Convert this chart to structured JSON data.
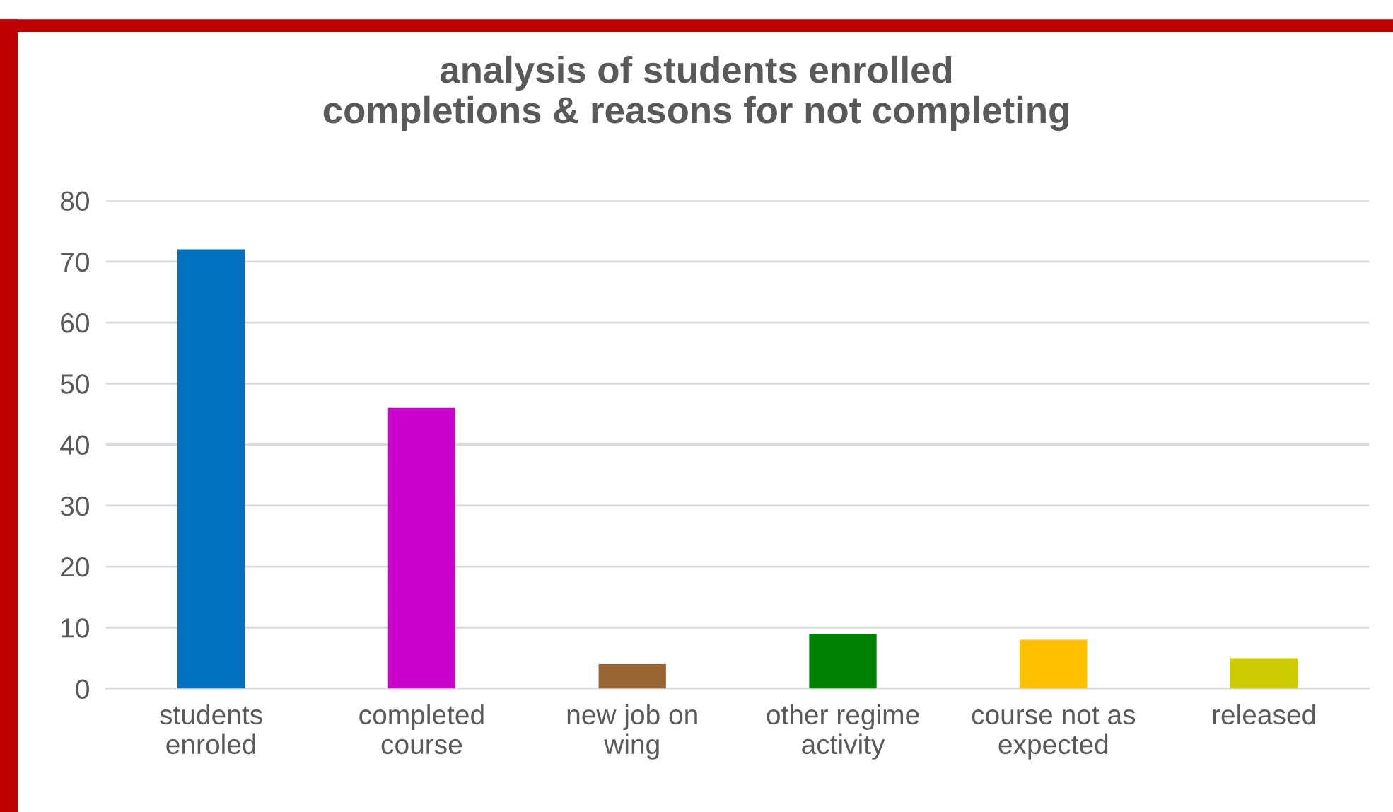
{
  "chart_data": {
    "type": "bar",
    "title": "analysis of students enrolled\ncompletions & reasons for not completing",
    "categories": [
      "students\nenroled",
      "completed\ncourse",
      "new job on\nwing",
      "other regime\nactivity",
      "course not as\nexpected",
      "released"
    ],
    "values": [
      72,
      46,
      4,
      9,
      8,
      5
    ],
    "colors": [
      "#0070c0",
      "#cc00cc",
      "#996633",
      "#008000",
      "#ffc000",
      "#cccc00"
    ],
    "ylim": [
      0,
      80
    ],
    "yticks": [
      0,
      10,
      20,
      30,
      40,
      50,
      60,
      70,
      80
    ],
    "grid": "y",
    "legend": false
  }
}
